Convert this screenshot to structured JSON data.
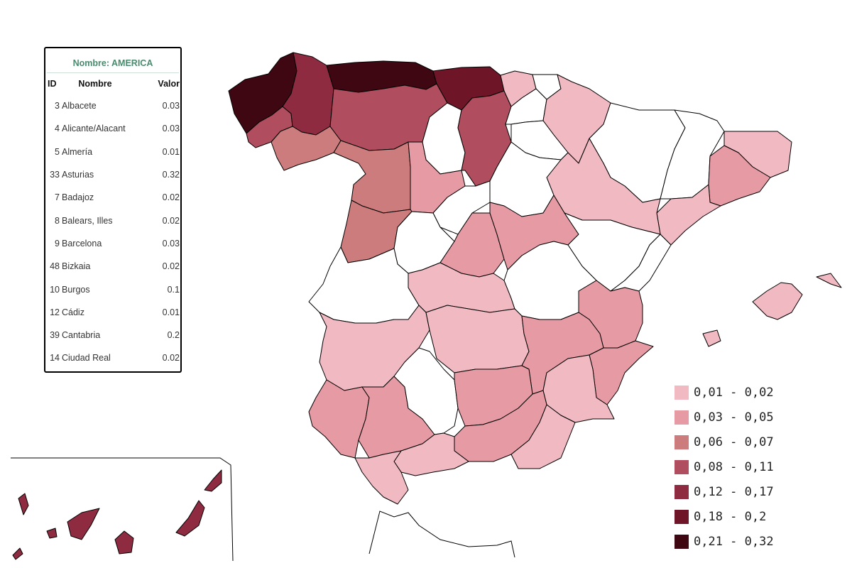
{
  "info_panel": {
    "title": "Nombre: AMERICA",
    "headers": {
      "id": "ID",
      "name": "Nombre",
      "value": "Valor"
    },
    "rows": [
      {
        "id": "3",
        "name": "Albacete",
        "value": "0.03"
      },
      {
        "id": "4",
        "name": "Alicante/Alacant",
        "value": "0.03"
      },
      {
        "id": "5",
        "name": "Almería",
        "value": "0.01"
      },
      {
        "id": "33",
        "name": "Asturias",
        "value": "0.32"
      },
      {
        "id": "7",
        "name": "Badajoz",
        "value": "0.02"
      },
      {
        "id": "8",
        "name": "Balears, Illes",
        "value": "0.02"
      },
      {
        "id": "9",
        "name": "Barcelona",
        "value": "0.03"
      },
      {
        "id": "48",
        "name": "Bizkaia",
        "value": "0.02"
      },
      {
        "id": "10",
        "name": "Burgos",
        "value": "0.1"
      },
      {
        "id": "12",
        "name": "Cádiz",
        "value": "0.01"
      },
      {
        "id": "39",
        "name": "Cantabria",
        "value": "0.2"
      },
      {
        "id": "14",
        "name": "Ciudad Real",
        "value": "0.02"
      }
    ]
  },
  "legend": [
    {
      "label": "0,01 - 0,02",
      "color": "#f1b9c2"
    },
    {
      "label": "0,03 - 0,05",
      "color": "#e69aa4"
    },
    {
      "label": "0,06 - 0,07",
      "color": "#cc7c7c"
    },
    {
      "label": "0,08 - 0,11",
      "color": "#b04d5e"
    },
    {
      "label": "0,12 - 0,17",
      "color": "#8e2b41"
    },
    {
      "label": "0,18 - 0,2",
      "color": "#6e1528"
    },
    {
      "label": "0,21 - 0,32",
      "color": "#3e0712"
    }
  ],
  "colors": {
    "no_data": "#ffffff",
    "c1": "#f1b9c2",
    "c2": "#e69aa4",
    "c3": "#cc7c7c",
    "c4": "#b04d5e",
    "c5": "#8e2b41",
    "c6": "#6e1528",
    "c7": "#3e0712"
  }
}
